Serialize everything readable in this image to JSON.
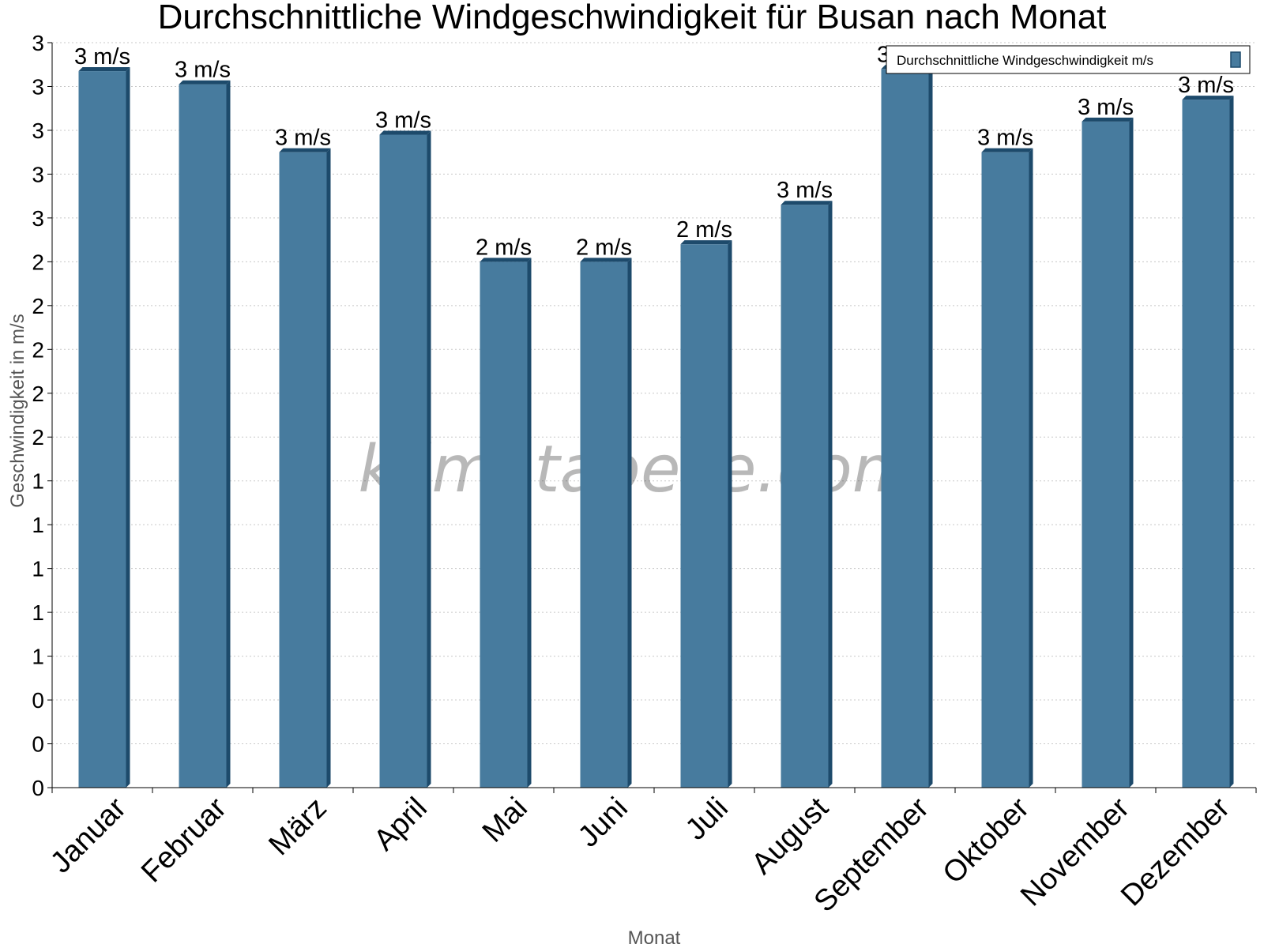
{
  "watermark": "klimatabelle.com",
  "colors": {
    "bar_front": "#477b9e",
    "bar_side": "#1d4a6b",
    "bar_top": "#1d4a6b",
    "grid": "#c8c8c8",
    "axis": "#000000"
  },
  "chart_data": {
    "type": "bar",
    "title": "Durchschnittliche Windgeschwindigkeit für Busan nach Monat",
    "xlabel": "Monat",
    "ylabel": "Geschwindigkeit in m/s",
    "categories": [
      "Januar",
      "Februar",
      "März",
      "April",
      "Mai",
      "Juni",
      "Juli",
      "August",
      "September",
      "Oktober",
      "November",
      "Dezember"
    ],
    "series": [
      {
        "name": "Durchschnittliche Windgeschwindigkeit m/s",
        "values": [
          3.27,
          3.21,
          2.9,
          2.98,
          2.4,
          2.4,
          2.48,
          2.66,
          3.28,
          2.9,
          3.04,
          3.14
        ],
        "labels": [
          "3 m/s",
          "3 m/s",
          "3 m/s",
          "3 m/s",
          "2 m/s",
          "2 m/s",
          "2 m/s",
          "3 m/s",
          "3 m/s",
          "3 m/s",
          "3 m/s",
          "3 m/s"
        ]
      }
    ],
    "ylim": [
      0,
      3.4
    ],
    "y_tick_values": [
      0,
      0.2,
      0.4,
      0.6,
      0.8,
      1.0,
      1.2,
      1.4,
      1.6,
      1.8,
      2.0,
      2.2,
      2.4,
      2.6,
      2.8,
      3.0,
      3.2,
      3.4
    ],
    "y_tick_labels": [
      "0",
      "0",
      "0",
      "1",
      "1",
      "1",
      "1",
      "1",
      "2",
      "2",
      "2",
      "2",
      "2",
      "3",
      "3",
      "3",
      "3",
      "3"
    ],
    "grid": true,
    "legend_position": "top-right"
  }
}
